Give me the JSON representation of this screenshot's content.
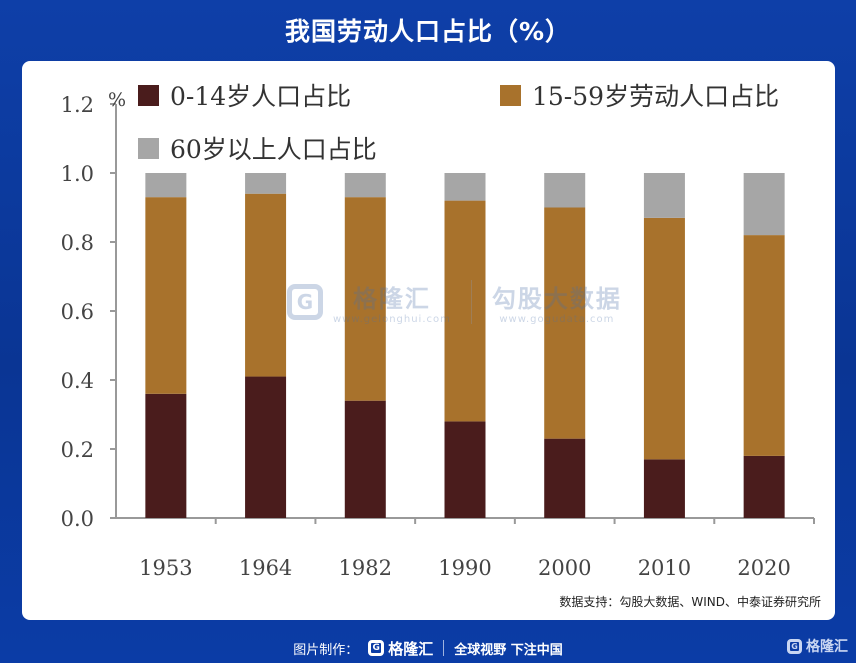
{
  "header": {
    "title": "我国劳动人口占比（%）"
  },
  "chart_data": {
    "type": "bar",
    "stacked": true,
    "categories": [
      "1953",
      "1964",
      "1982",
      "1990",
      "2000",
      "2010",
      "2020"
    ],
    "series": [
      {
        "name": "0-14岁人口占比",
        "color": "#4a1c1c",
        "values": [
          0.36,
          0.41,
          0.34,
          0.28,
          0.23,
          0.17,
          0.18
        ]
      },
      {
        "name": "15-59岁劳动人口占比",
        "color": "#a8722c",
        "values": [
          0.57,
          0.53,
          0.59,
          0.64,
          0.67,
          0.7,
          0.64
        ]
      },
      {
        "name": "60岁以上人口占比",
        "color": "#a6a6a6",
        "values": [
          0.07,
          0.06,
          0.07,
          0.08,
          0.1,
          0.13,
          0.18
        ]
      }
    ],
    "ylim": [
      0,
      1.2
    ],
    "yticks": [
      "0.0",
      "0.2",
      "0.4",
      "0.6",
      "0.8",
      "1.0",
      "1.2"
    ],
    "yunit": "%",
    "legend_position": "top-left",
    "grid": false
  },
  "source": "数据支持：勾股大数据、WIND、中泰证券研究所",
  "watermark": {
    "brand": "格隆汇",
    "brand_sub": "www.gelonghui.com",
    "partner": "勾股大数据",
    "partner_sub": "www.gogudata.com"
  },
  "footer": {
    "made_by": "图片制作：",
    "brand": "格隆汇",
    "slogan": "全球视野 下注中国",
    "logo_letter": "G"
  },
  "colors": {
    "background": "#0d3ca2",
    "card": "#ffffff"
  }
}
